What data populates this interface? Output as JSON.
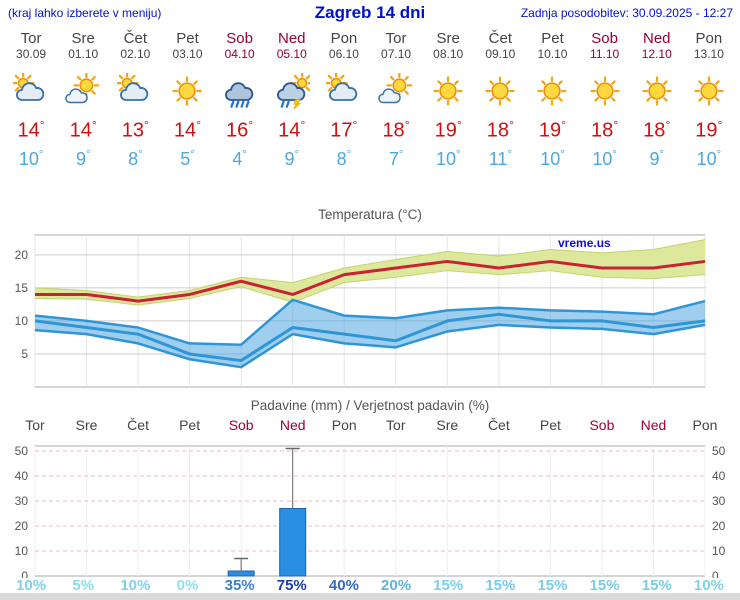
{
  "header": {
    "note": "(kraj lahko izberete v meniju)",
    "title": "Zagreb 14 dni",
    "updated": "Zadnja posodobitev: 30.09.2025 - 12:27"
  },
  "brand": "vreme.us",
  "degree": "°",
  "colors": {
    "header_blue": "#0011cc",
    "weekday": "#444444",
    "weekend": "#990033",
    "tmax": "#cc1111",
    "tmin": "#4aa8e0",
    "chart_text": "#555555",
    "brand_blue": "#1111cc"
  },
  "days": [
    {
      "name": "Tor",
      "date": "30.09",
      "weekend": false,
      "icon": "mostly-cloudy",
      "tmax": "14",
      "tmin": "10"
    },
    {
      "name": "Sre",
      "date": "01.10",
      "weekend": false,
      "icon": "partly-sunny",
      "tmax": "14",
      "tmin": "9"
    },
    {
      "name": "Čet",
      "date": "02.10",
      "weekend": false,
      "icon": "mostly-cloudy",
      "tmax": "13",
      "tmin": "8"
    },
    {
      "name": "Pet",
      "date": "03.10",
      "weekend": false,
      "icon": "sunny",
      "tmax": "14",
      "tmin": "5"
    },
    {
      "name": "Sob",
      "date": "04.10",
      "weekend": true,
      "icon": "rain",
      "tmax": "16",
      "tmin": "4"
    },
    {
      "name": "Ned",
      "date": "05.10",
      "weekend": true,
      "icon": "storm-sun",
      "tmax": "14",
      "tmin": "9"
    },
    {
      "name": "Pon",
      "date": "06.10",
      "weekend": false,
      "icon": "mostly-cloudy",
      "tmax": "17",
      "tmin": "8"
    },
    {
      "name": "Tor",
      "date": "07.10",
      "weekend": false,
      "icon": "partly-sunny",
      "tmax": "18",
      "tmin": "7"
    },
    {
      "name": "Sre",
      "date": "08.10",
      "weekend": false,
      "icon": "sunny",
      "tmax": "19",
      "tmin": "10"
    },
    {
      "name": "Čet",
      "date": "09.10",
      "weekend": false,
      "icon": "sunny",
      "tmax": "18",
      "tmin": "11"
    },
    {
      "name": "Pet",
      "date": "10.10",
      "weekend": false,
      "icon": "sunny",
      "tmax": "19",
      "tmin": "10"
    },
    {
      "name": "Sob",
      "date": "11.10",
      "weekend": true,
      "icon": "sunny",
      "tmax": "18",
      "tmin": "10"
    },
    {
      "name": "Ned",
      "date": "12.10",
      "weekend": true,
      "icon": "sunny",
      "tmax": "18",
      "tmin": "9"
    },
    {
      "name": "Pon",
      "date": "13.10",
      "weekend": false,
      "icon": "sunny",
      "tmax": "19",
      "tmin": "10"
    }
  ],
  "chart_data": [
    {
      "type": "line",
      "title": "Temperatura (°C)",
      "ylim": [
        0,
        23
      ],
      "yticks": [
        5,
        10,
        15,
        20
      ],
      "x_labels": [
        "Tor",
        "Sre",
        "Čet",
        "Pet",
        "Sob",
        "Ned",
        "Pon",
        "Tor",
        "Sre",
        "Čet",
        "Pet",
        "Sob",
        "Ned",
        "Pon"
      ],
      "series": [
        {
          "name": "tmin",
          "color": "#2f96d5",
          "width": 3,
          "values": [
            10,
            9,
            8,
            5,
            4,
            9,
            8,
            7,
            10,
            11,
            10,
            10,
            9,
            10
          ]
        },
        {
          "name": "tmax",
          "color": "#c82333",
          "width": 3,
          "values": [
            14,
            14,
            13,
            14,
            16,
            14,
            17,
            18,
            19,
            18,
            19,
            18,
            18,
            19
          ]
        }
      ],
      "bands": [
        {
          "name": "tmax-range",
          "fill": "#dde89c",
          "edge": "#c2d36e",
          "edge_width": 1,
          "hi": [
            15,
            14.6,
            13.6,
            14.6,
            16.6,
            15.8,
            18,
            19.3,
            20.5,
            19.8,
            20.8,
            20.3,
            20.8,
            22.3
          ],
          "lo": [
            13.4,
            13.3,
            12.4,
            13.4,
            15.2,
            12.8,
            15.8,
            16.6,
            17.6,
            17,
            17.6,
            16.6,
            16.4,
            17
          ]
        },
        {
          "name": "tmin-range",
          "fill": "rgba(80,165,225,0.55)",
          "edge": "#2f96d5",
          "edge_width": 2.5,
          "hi": [
            10.8,
            10,
            9,
            6.6,
            6.4,
            13.2,
            10.8,
            10.4,
            11.6,
            12,
            11.6,
            11.4,
            11,
            13
          ],
          "lo": [
            8.6,
            8,
            6.6,
            4.2,
            3,
            8,
            6.6,
            6,
            8.4,
            9.4,
            9,
            8.8,
            8,
            9.4
          ]
        }
      ]
    },
    {
      "type": "bar",
      "title": "Padavine (mm) / Verjetnost padavin (%)",
      "ylim": [
        0,
        52
      ],
      "yticks": [
        0,
        10,
        20,
        30,
        40,
        50
      ],
      "categories": [
        "Tor",
        "Sre",
        "Čet",
        "Pet",
        "Sob",
        "Ned",
        "Pon",
        "Tor",
        "Sre",
        "Čet",
        "Pet",
        "Sob",
        "Ned",
        "Pon"
      ],
      "values_mm": [
        0,
        0,
        0,
        0,
        2,
        27,
        0,
        0,
        0,
        0,
        0,
        0,
        0,
        0
      ],
      "max_mm": [
        0,
        0,
        0,
        0,
        7,
        51,
        0,
        0,
        0,
        0,
        0,
        0,
        0,
        0
      ],
      "bar_color": "#2a8fe0",
      "bar_edge": "#1a65b0",
      "probabilities": [
        {
          "label": "10%",
          "color": "#7dd1e8"
        },
        {
          "label": "5%",
          "color": "#8adbee"
        },
        {
          "label": "10%",
          "color": "#7dd1e8"
        },
        {
          "label": "0%",
          "color": "#8fdfef"
        },
        {
          "label": "35%",
          "color": "#3c7fd0"
        },
        {
          "label": "75%",
          "color": "#1e3ca8"
        },
        {
          "label": "40%",
          "color": "#3568c8"
        },
        {
          "label": "20%",
          "color": "#5fb4de"
        },
        {
          "label": "15%",
          "color": "#79cde8"
        },
        {
          "label": "15%",
          "color": "#79cde8"
        },
        {
          "label": "15%",
          "color": "#79cde8"
        },
        {
          "label": "15%",
          "color": "#79cde8"
        },
        {
          "label": "15%",
          "color": "#79cde8"
        },
        {
          "label": "10%",
          "color": "#7dd1e8"
        }
      ]
    }
  ]
}
